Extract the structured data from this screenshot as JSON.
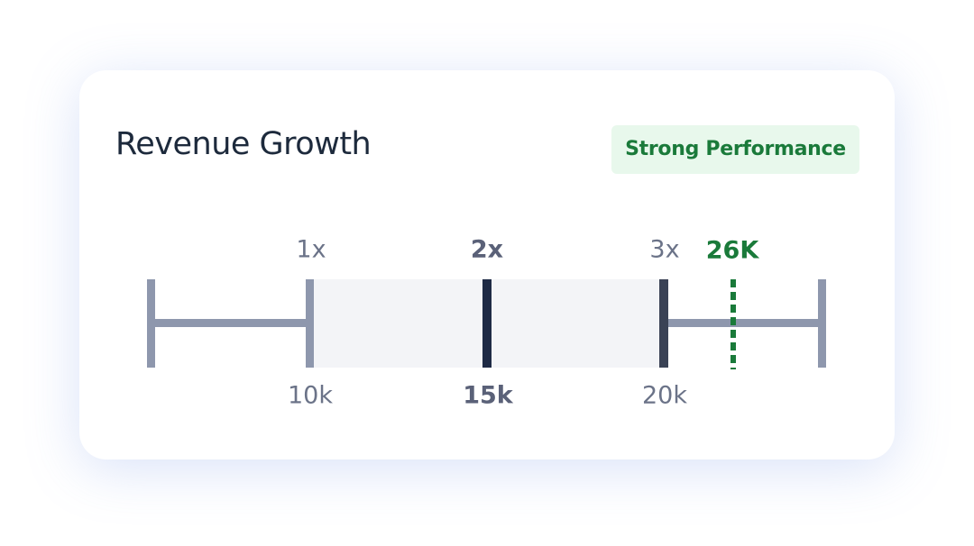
{
  "header": {
    "title": "Revenue Growth",
    "badge": "Strong Performance"
  },
  "scale": {
    "markers": [
      {
        "top": "1x",
        "bottom": "10k"
      },
      {
        "top": "2x",
        "bottom": "15k"
      },
      {
        "top": "3x",
        "bottom": "20k"
      }
    ],
    "current": "26K"
  }
}
